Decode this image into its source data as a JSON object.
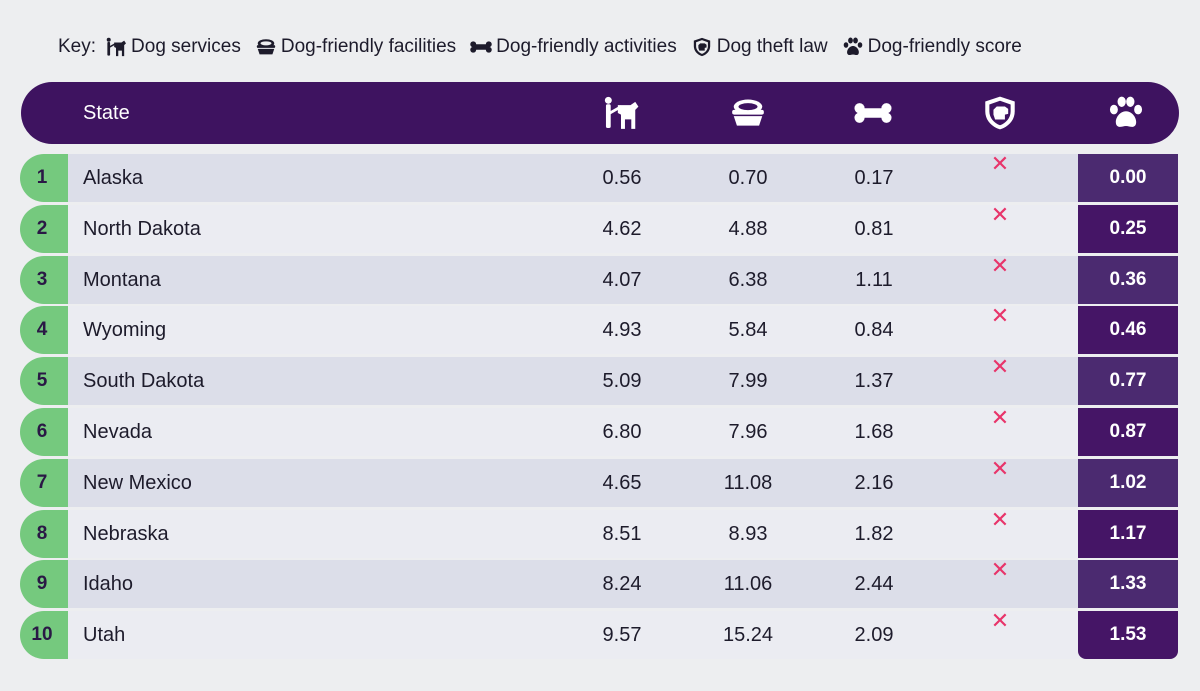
{
  "key": {
    "title": "Key:",
    "items": [
      {
        "icon": "dog-services-icon",
        "label": "Dog services"
      },
      {
        "icon": "dog-bowl-icon",
        "label": "Dog-friendly facilities"
      },
      {
        "icon": "bone-icon",
        "label": "Dog-friendly activities"
      },
      {
        "icon": "shield-dog-icon",
        "label": "Dog theft law"
      },
      {
        "icon": "paw-icon",
        "label": "Dog-friendly score"
      }
    ]
  },
  "header": {
    "state_label": "State",
    "column_icons": [
      "dog-services-icon",
      "dog-bowl-icon",
      "bone-icon",
      "shield-dog-icon",
      "paw-icon"
    ]
  },
  "colors": {
    "header_bg": "#3e1360",
    "rank_green": "#75c97e",
    "score_bg": "#451566",
    "cross_red": "#e8346a"
  },
  "chart_data": {
    "type": "table",
    "columns": [
      "State",
      "Dog services",
      "Dog-friendly facilities",
      "Dog-friendly activities",
      "Dog theft law",
      "Dog-friendly score"
    ],
    "rows": [
      {
        "rank": "1",
        "state": "Alaska",
        "services": "0.56",
        "facilities": "0.70",
        "activities": "0.17",
        "theft_law": "✕",
        "score": "0.00"
      },
      {
        "rank": "2",
        "state": "North Dakota",
        "services": "4.62",
        "facilities": "4.88",
        "activities": "0.81",
        "theft_law": "✕",
        "score": "0.25"
      },
      {
        "rank": "3",
        "state": "Montana",
        "services": "4.07",
        "facilities": "6.38",
        "activities": "1.11",
        "theft_law": "✕",
        "score": "0.36"
      },
      {
        "rank": "4",
        "state": "Wyoming",
        "services": "4.93",
        "facilities": "5.84",
        "activities": "0.84",
        "theft_law": "✕",
        "score": "0.46"
      },
      {
        "rank": "5",
        "state": "South Dakota",
        "services": "5.09",
        "facilities": "7.99",
        "activities": "1.37",
        "theft_law": "✕",
        "score": "0.77"
      },
      {
        "rank": "6",
        "state": "Nevada",
        "services": "6.80",
        "facilities": "7.96",
        "activities": "1.68",
        "theft_law": "✕",
        "score": "0.87"
      },
      {
        "rank": "7",
        "state": "New Mexico",
        "services": "4.65",
        "facilities": "11.08",
        "activities": "2.16",
        "theft_law": "✕",
        "score": "1.02"
      },
      {
        "rank": "8",
        "state": "Nebraska",
        "services": "8.51",
        "facilities": "8.93",
        "activities": "1.82",
        "theft_law": "✕",
        "score": "1.17"
      },
      {
        "rank": "9",
        "state": "Idaho",
        "services": "8.24",
        "facilities": "11.06",
        "activities": "2.44",
        "theft_law": "✕",
        "score": "1.33"
      },
      {
        "rank": "10",
        "state": "Utah",
        "services": "9.57",
        "facilities": "15.24",
        "activities": "2.09",
        "theft_law": "✕",
        "score": "1.53"
      }
    ]
  }
}
